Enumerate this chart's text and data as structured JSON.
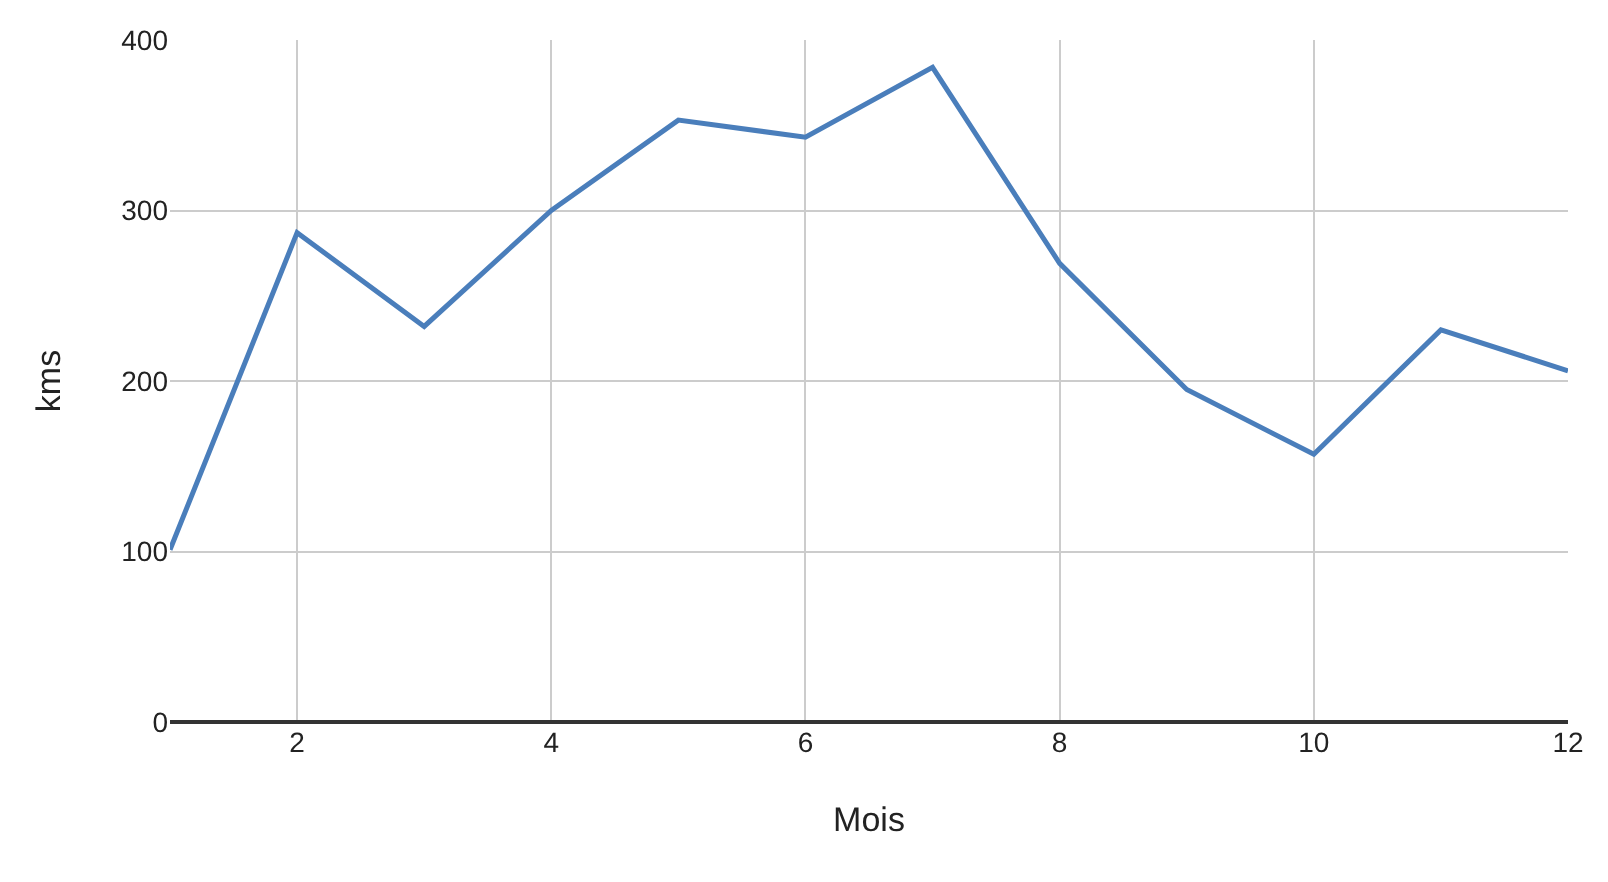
{
  "chart_data": {
    "type": "line",
    "xlabel": "Mois",
    "ylabel": "kms",
    "x": [
      1,
      2,
      3,
      4,
      5,
      6,
      7,
      8,
      9,
      10,
      11,
      12
    ],
    "series": [
      {
        "color": "#4a7ebb",
        "values": [
          101,
          287,
          232,
          300,
          353,
          343,
          384,
          269,
          195,
          157,
          230,
          206
        ]
      }
    ],
    "xlim": [
      1,
      12
    ],
    "xticks": [
      2,
      4,
      6,
      8,
      10,
      12
    ],
    "ylim": [
      0,
      400
    ],
    "yticks": [
      0,
      100,
      200,
      300,
      400
    ],
    "grid": true,
    "legend": false,
    "marker": "none",
    "line_style": "solid"
  }
}
